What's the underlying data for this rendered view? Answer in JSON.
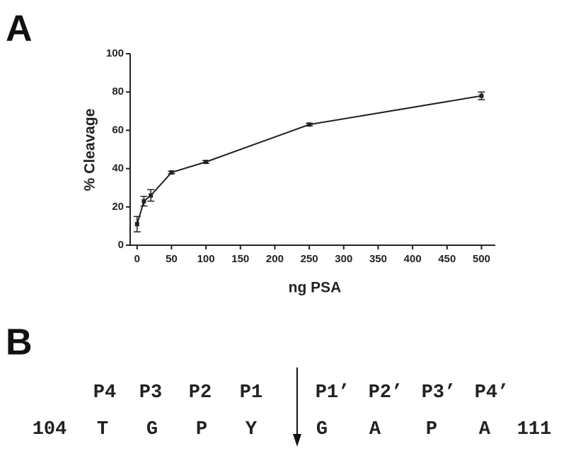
{
  "chart_data": {
    "type": "line",
    "x_label": "ng PSA",
    "y_label": "% Cleavage",
    "x": [
      0,
      10,
      20,
      50,
      100,
      250,
      500
    ],
    "values": [
      11,
      23,
      26,
      38,
      43.5,
      63,
      78
    ],
    "errors": [
      4,
      2.5,
      3,
      0.7,
      0.7,
      0.7,
      2
    ],
    "color": "#222222",
    "xlim": [
      -10,
      520
    ],
    "xticks": [
      0,
      50,
      100,
      150,
      200,
      250,
      300,
      350,
      400,
      450,
      500
    ],
    "ylim": [
      0,
      100
    ],
    "yticks": [
      0,
      20,
      40,
      60,
      80,
      100
    ]
  },
  "panel_labels": [
    "A",
    "B"
  ],
  "sequence": {
    "positions": [
      "P4",
      "P3",
      "P2",
      "P1",
      "P1’",
      "P2’",
      "P3’",
      "P4’"
    ],
    "start": "104",
    "residues": [
      "T",
      "G",
      "P",
      "Y",
      "G",
      "A",
      "P",
      "A"
    ],
    "end": "111"
  }
}
